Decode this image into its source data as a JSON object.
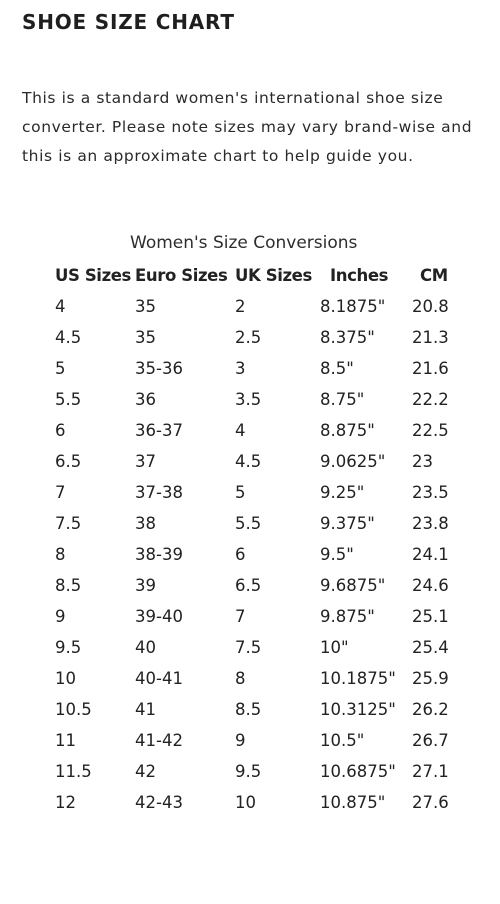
{
  "header": {
    "title": "SHOE SIZE CHART"
  },
  "intro": {
    "text": "This is a standard women's international shoe size converter. Please note sizes may vary brand-wise and this is an approximate chart to help guide you."
  },
  "table": {
    "title": "Women's Size Conversions",
    "columns": [
      "US Sizes",
      "Euro Sizes",
      "UK Sizes",
      "Inches",
      "CM"
    ],
    "rows": [
      [
        "4",
        "35",
        "2",
        "8.1875\"",
        "20.8"
      ],
      [
        "4.5",
        "35",
        "2.5",
        "8.375\"",
        "21.3"
      ],
      [
        "5",
        "35-36",
        "3",
        "8.5\"",
        "21.6"
      ],
      [
        "5.5",
        "36",
        "3.5",
        "8.75\"",
        "22.2"
      ],
      [
        "6",
        "36-37",
        "4",
        "8.875\"",
        "22.5"
      ],
      [
        "6.5",
        "37",
        "4.5",
        "9.0625\"",
        "23"
      ],
      [
        "7",
        "37-38",
        "5",
        "9.25\"",
        "23.5"
      ],
      [
        "7.5",
        "38",
        "5.5",
        "9.375\"",
        "23.8"
      ],
      [
        "8",
        "38-39",
        "6",
        "9.5\"",
        "24.1"
      ],
      [
        "8.5",
        "39",
        "6.5",
        "9.6875\"",
        "24.6"
      ],
      [
        "9",
        "39-40",
        "7",
        "9.875\"",
        "25.1"
      ],
      [
        "9.5",
        "40",
        "7.5",
        "10\"",
        "25.4"
      ],
      [
        "10",
        "40-41",
        "8",
        "10.1875\"",
        "25.9"
      ],
      [
        "10.5",
        "41",
        "8.5",
        "10.3125\"",
        "26.2"
      ],
      [
        "11",
        "41-42",
        "9",
        "10.5\"",
        "26.7"
      ],
      [
        "11.5",
        "42",
        "9.5",
        "10.6875\"",
        "27.1"
      ],
      [
        "12",
        "42-43",
        "10",
        "10.875\"",
        "27.6"
      ]
    ]
  }
}
